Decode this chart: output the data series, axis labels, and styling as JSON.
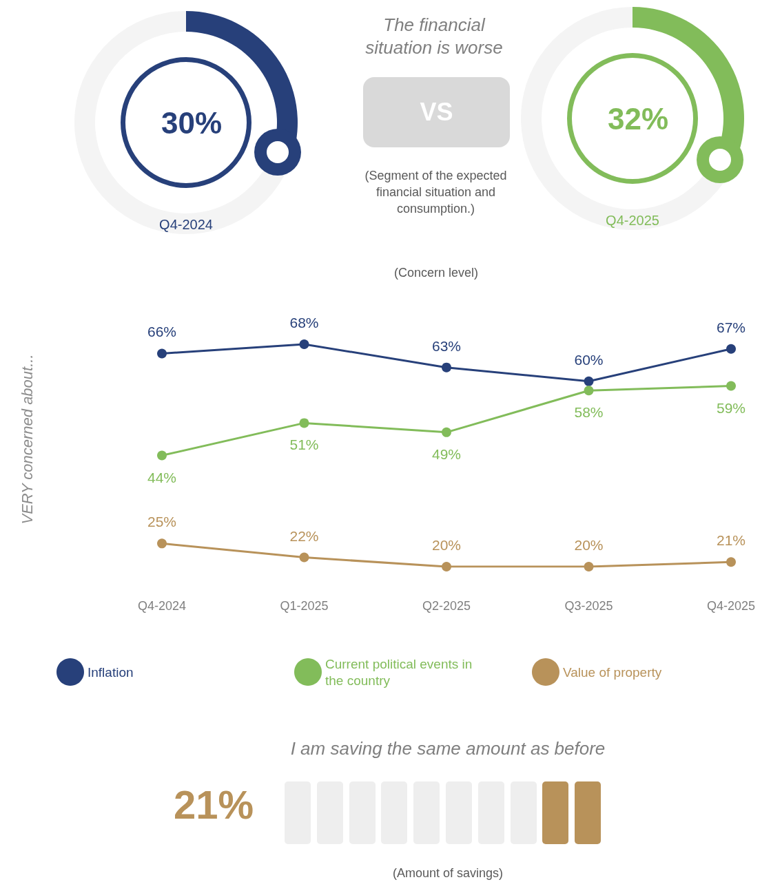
{
  "chart_data": [
    {
      "type": "donut",
      "xlabel": "Q4-2024",
      "categories": [
        null,
        null
      ],
      "values": [
        30,
        70
      ],
      "colors": [
        "#27407a",
        "#f4f4f4"
      ],
      "value_labels": [
        "30%",
        null
      ]
    },
    {
      "type": "other",
      "title": "The financial situation is worse",
      "annotations": [
        "VS",
        "(Segment of the expected financial situation and consumption.)"
      ]
    },
    {
      "type": "donut",
      "xlabel": "Q4-2025",
      "categories": [
        null,
        null
      ],
      "values": [
        32,
        68
      ],
      "colors": [
        "#82bc5a",
        "#f4f4f4"
      ],
      "value_labels": [
        "32%",
        null
      ]
    },
    {
      "type": "line",
      "subtitle": "(Concern level)",
      "ylabel": "VERY concerned about...",
      "categories": [
        "Q4-2024",
        "Q1-2025",
        "Q2-2025",
        "Q3-2025",
        "Q4-2025"
      ],
      "series": [
        {
          "name": "Inflation",
          "color": "#27407a",
          "values": [
            66,
            68,
            63,
            60,
            67
          ],
          "value_labels": [
            "66%",
            "68%",
            "63%",
            "60%",
            "67%"
          ]
        },
        {
          "name": "Current political events in the country",
          "color": "#82bc5a",
          "values": [
            44,
            51,
            49,
            58,
            59
          ],
          "value_labels": [
            "44%",
            "51%",
            "49%",
            "58%",
            "59%"
          ]
        },
        {
          "name": "Value of property",
          "color": "#b8925a",
          "values": [
            25,
            22,
            20,
            20,
            21
          ],
          "value_labels": [
            "25%",
            "22%",
            "20%",
            "20%",
            "21%"
          ]
        }
      ],
      "marker": "circle",
      "legend": "bottom",
      "grid": false,
      "tick_labels": "x"
    },
    {
      "type": "other",
      "title": "I am saving the same amount as before",
      "annotations": [
        "21%",
        "(Amount of savings)"
      ]
    }
  ]
}
